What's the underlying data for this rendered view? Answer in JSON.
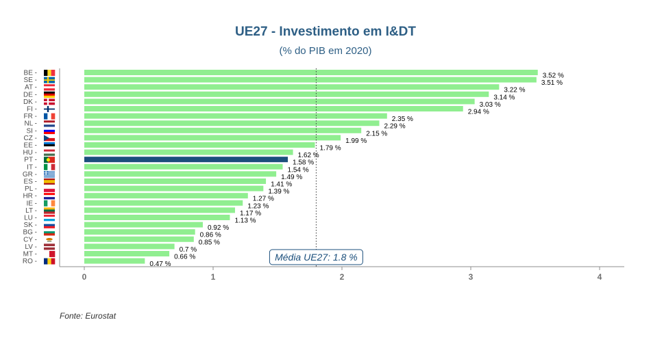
{
  "title": "UE27 - Investimento em I&DT",
  "subtitle": "(% do PIB em 2020)",
  "source": "Fonte: Eurostat",
  "colors": {
    "bar": "#90ee90",
    "highlight": "#1b4f7c",
    "title": "#2e5f85",
    "axis": "#8c8c8c",
    "reference_line": "#333333"
  },
  "chart_data": {
    "type": "bar",
    "orientation": "horizontal",
    "title": "UE27 - Investimento em I&DT",
    "subtitle": "(% do PIB em 2020)",
    "categories": [
      "BE",
      "SE",
      "AT",
      "DE",
      "DK",
      "FI",
      "FR",
      "NL",
      "SI",
      "CZ",
      "EE",
      "HU",
      "PT",
      "IT",
      "GR",
      "ES",
      "PL",
      "HR",
      "IE",
      "LT",
      "LU",
      "SK",
      "BG",
      "CY",
      "LV",
      "MT",
      "RO"
    ],
    "values": [
      3.52,
      3.51,
      3.22,
      3.14,
      3.03,
      2.94,
      2.35,
      2.29,
      2.15,
      1.99,
      1.79,
      1.62,
      1.58,
      1.54,
      1.49,
      1.41,
      1.39,
      1.27,
      1.23,
      1.17,
      1.13,
      0.92,
      0.86,
      0.85,
      0.7,
      0.66,
      0.47
    ],
    "value_labels": [
      "3.52 %",
      "3.51 %",
      "3.22 %",
      "3.14 %",
      "3.03 %",
      "2.94 %",
      "2.35 %",
      "2.29 %",
      "2.15 %",
      "1.99 %",
      "1.79 %",
      "1.62 %",
      "1.58 %",
      "1.54 %",
      "1.49 %",
      "1.41 %",
      "1.39 %",
      "1.27 %",
      "1.23 %",
      "1.17 %",
      "1.13 %",
      "0.92 %",
      "0.86 %",
      "0.85 %",
      "0.7 %",
      "0.66 %",
      "0.47 %"
    ],
    "highlight": "PT",
    "x_ticks": [
      "0",
      "1",
      "2",
      "3",
      "4"
    ],
    "xlim": [
      0,
      4.2
    ],
    "xlabel": "",
    "ylabel": "",
    "reference": {
      "value": 1.8,
      "label": "Média UE27: 1.8 %"
    },
    "flag_icons": [
      "belgium-flag-icon",
      "sweden-flag-icon",
      "austria-flag-icon",
      "germany-flag-icon",
      "denmark-flag-icon",
      "finland-flag-icon",
      "france-flag-icon",
      "netherlands-flag-icon",
      "slovenia-flag-icon",
      "czechia-flag-icon",
      "estonia-flag-icon",
      "hungary-flag-icon",
      "portugal-flag-icon",
      "italy-flag-icon",
      "greece-flag-icon",
      "spain-flag-icon",
      "poland-flag-icon",
      "croatia-flag-icon",
      "ireland-flag-icon",
      "lithuania-flag-icon",
      "luxembourg-flag-icon",
      "slovakia-flag-icon",
      "bulgaria-flag-icon",
      "cyprus-flag-icon",
      "latvia-flag-icon",
      "malta-flag-icon",
      "romania-flag-icon"
    ]
  }
}
